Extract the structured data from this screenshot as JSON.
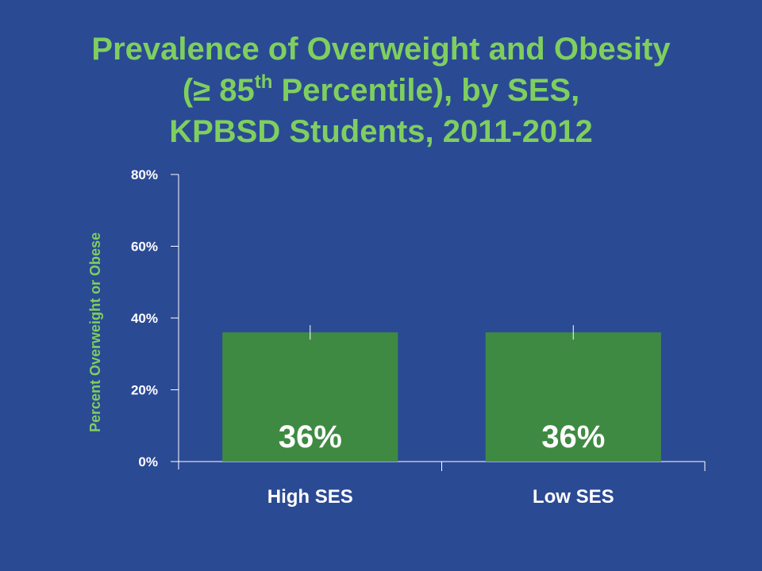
{
  "title": {
    "line1": "Prevalence of Overweight and Obesity",
    "line2_pre": "(≥ 85",
    "line2_sup": "th",
    "line2_post": " Percentile), by SES,",
    "line3": "KPBSD Students, 2011-2012"
  },
  "colors": {
    "background": "#2b4a94",
    "title": "#7fcf5f",
    "bar": "#3f8a43",
    "axis": "#ffffff"
  },
  "chart_data": {
    "type": "bar",
    "categories": [
      "High SES",
      "Low SES"
    ],
    "values": [
      36,
      36
    ],
    "data_labels": [
      "36%",
      "36%"
    ],
    "error_upper": [
      38,
      38
    ],
    "error_lower": [
      34,
      34
    ],
    "title": "Prevalence of Overweight and Obesity (≥ 85th Percentile), by SES, KPBSD Students, 2011-2012",
    "xlabel": "",
    "ylabel": "Percent Overweight or Obese",
    "ylim": [
      0,
      80
    ],
    "yticks": [
      0,
      20,
      40,
      60,
      80
    ],
    "ytick_labels": [
      "0%",
      "20%",
      "40%",
      "60%",
      "80%"
    ],
    "grid": false,
    "legend": "none"
  }
}
